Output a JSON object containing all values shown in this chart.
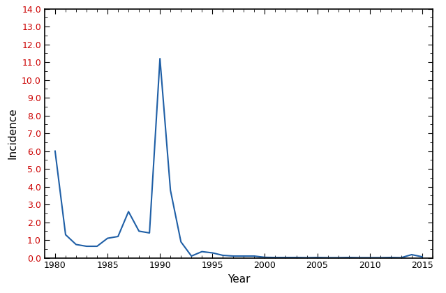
{
  "years": [
    1980,
    1981,
    1982,
    1983,
    1984,
    1985,
    1986,
    1987,
    1988,
    1989,
    1990,
    1991,
    1992,
    1993,
    1994,
    1995,
    1996,
    1997,
    1998,
    1999,
    2000,
    2001,
    2002,
    2003,
    2004,
    2005,
    2006,
    2007,
    2008,
    2009,
    2010,
    2011,
    2012,
    2013,
    2014,
    2015
  ],
  "incidence": [
    6.0,
    1.3,
    0.75,
    0.65,
    0.65,
    1.1,
    1.2,
    2.6,
    1.5,
    1.4,
    11.2,
    3.8,
    0.9,
    0.1,
    0.35,
    0.28,
    0.14,
    0.1,
    0.1,
    0.1,
    0.03,
    0.02,
    0.02,
    0.02,
    0.01,
    0.02,
    0.01,
    0.01,
    0.02,
    0.01,
    0.01,
    0.01,
    0.02,
    0.01,
    0.18,
    0.06
  ],
  "line_color": "#1f5fa6",
  "line_width": 1.5,
  "xlabel": "Year",
  "ylabel": "Incidence",
  "xlim": [
    1979,
    2016
  ],
  "ylim": [
    0.0,
    14.0
  ],
  "yticks": [
    0.0,
    1.0,
    2.0,
    3.0,
    4.0,
    5.0,
    6.0,
    7.0,
    8.0,
    9.0,
    10.0,
    11.0,
    12.0,
    13.0,
    14.0
  ],
  "ytick_labels": [
    "0.0",
    "1.0",
    "2.0",
    "3.0",
    "4.0",
    "5.0",
    "6.0",
    "7.0",
    "8.0",
    "9.0",
    "10.0",
    "11.0",
    "12.0",
    "13.0",
    "14.0"
  ],
  "xticks": [
    1980,
    1985,
    1990,
    1995,
    2000,
    2005,
    2010,
    2015
  ],
  "background_color": "#ffffff",
  "ytick_label_color": "#cc0000",
  "spine_color": "#000000",
  "tick_fontsize": 9,
  "label_fontsize": 11
}
